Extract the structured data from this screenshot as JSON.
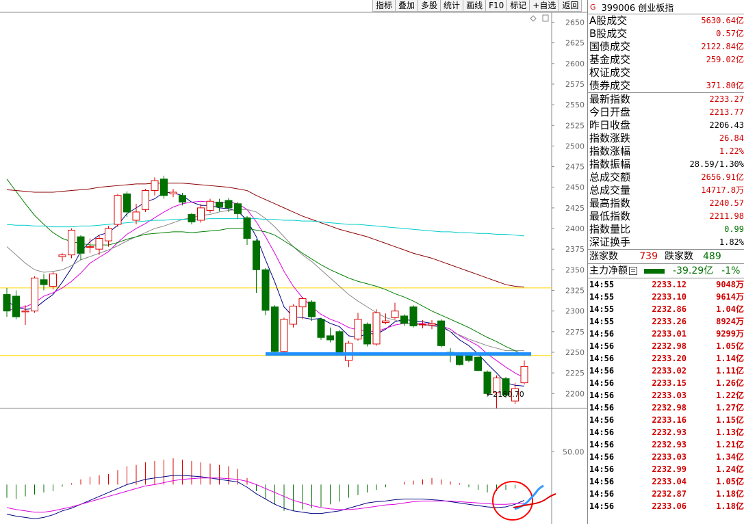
{
  "toolbar": {
    "buttons": [
      "指标",
      "叠加",
      "多股",
      "统计",
      "画线",
      "F10",
      "标记",
      "+自选",
      "返回"
    ]
  },
  "chart_data": [
    {
      "type": "candlestick",
      "y_ticks": [
        2650,
        2625,
        2600,
        2575,
        2550,
        2525,
        2500,
        2475,
        2450,
        2425,
        2400,
        2375,
        2350,
        2325,
        2300,
        2275,
        2250,
        2225,
        2200
      ],
      "ylim": [
        2182,
        2662
      ],
      "low_annotation": "←2180.70",
      "horizontal_lines": [
        {
          "value": 2328,
          "color": "#ffd700"
        },
        {
          "value": 2246,
          "color": "#ffd700"
        }
      ],
      "support_line": {
        "value": 2248,
        "color": "#1e90ff"
      },
      "candles": [
        {
          "o": 2320,
          "c": 2300,
          "h": 2328,
          "l": 2293
        },
        {
          "o": 2318,
          "c": 2293,
          "h": 2325,
          "l": 2290
        },
        {
          "o": 2299,
          "c": 2300,
          "h": 2307,
          "l": 2283
        },
        {
          "o": 2300,
          "c": 2340,
          "h": 2342,
          "l": 2298
        },
        {
          "o": 2338,
          "c": 2332,
          "h": 2345,
          "l": 2325
        },
        {
          "o": 2330,
          "c": 2345,
          "h": 2348,
          "l": 2326
        },
        {
          "o": 2366,
          "c": 2368,
          "h": 2370,
          "l": 2360
        },
        {
          "o": 2368,
          "c": 2398,
          "h": 2400,
          "l": 2364
        },
        {
          "o": 2390,
          "c": 2370,
          "h": 2392,
          "l": 2362
        },
        {
          "o": 2378,
          "c": 2378,
          "h": 2388,
          "l": 2370
        },
        {
          "o": 2375,
          "c": 2388,
          "h": 2392,
          "l": 2368
        },
        {
          "o": 2385,
          "c": 2400,
          "h": 2403,
          "l": 2378
        },
        {
          "o": 2405,
          "c": 2440,
          "h": 2442,
          "l": 2402
        },
        {
          "o": 2442,
          "c": 2420,
          "h": 2445,
          "l": 2414
        },
        {
          "o": 2410,
          "c": 2420,
          "h": 2430,
          "l": 2405
        },
        {
          "o": 2423,
          "c": 2446,
          "h": 2448,
          "l": 2420
        },
        {
          "o": 2446,
          "c": 2458,
          "h": 2462,
          "l": 2440
        },
        {
          "o": 2460,
          "c": 2440,
          "h": 2464,
          "l": 2436
        },
        {
          "o": 2442,
          "c": 2444,
          "h": 2448,
          "l": 2438
        },
        {
          "o": 2440,
          "c": 2432,
          "h": 2443,
          "l": 2428
        },
        {
          "o": 2417,
          "c": 2408,
          "h": 2419,
          "l": 2405
        },
        {
          "o": 2410,
          "c": 2425,
          "h": 2430,
          "l": 2407
        },
        {
          "o": 2422,
          "c": 2433,
          "h": 2436,
          "l": 2419
        },
        {
          "o": 2432,
          "c": 2426,
          "h": 2436,
          "l": 2421
        },
        {
          "o": 2434,
          "c": 2425,
          "h": 2437,
          "l": 2420
        },
        {
          "o": 2430,
          "c": 2418,
          "h": 2432,
          "l": 2412
        },
        {
          "o": 2413,
          "c": 2388,
          "h": 2415,
          "l": 2380
        },
        {
          "o": 2385,
          "c": 2350,
          "h": 2387,
          "l": 2322
        },
        {
          "o": 2350,
          "c": 2301,
          "h": 2352,
          "l": 2295
        },
        {
          "o": 2305,
          "c": 2251,
          "h": 2307,
          "l": 2247
        },
        {
          "o": 2251,
          "c": 2290,
          "h": 2292,
          "l": 2247
        },
        {
          "o": 2284,
          "c": 2306,
          "h": 2308,
          "l": 2280
        },
        {
          "o": 2305,
          "c": 2315,
          "h": 2317,
          "l": 2290
        },
        {
          "o": 2311,
          "c": 2293,
          "h": 2313,
          "l": 2288
        },
        {
          "o": 2290,
          "c": 2268,
          "h": 2292,
          "l": 2265
        },
        {
          "o": 2270,
          "c": 2265,
          "h": 2280,
          "l": 2262
        },
        {
          "o": 2275,
          "c": 2250,
          "h": 2277,
          "l": 2247
        },
        {
          "o": 2240,
          "c": 2261,
          "h": 2264,
          "l": 2232
        },
        {
          "o": 2266,
          "c": 2290,
          "h": 2298,
          "l": 2264
        },
        {
          "o": 2284,
          "c": 2260,
          "h": 2286,
          "l": 2257
        },
        {
          "o": 2260,
          "c": 2298,
          "h": 2302,
          "l": 2258
        },
        {
          "o": 2286,
          "c": 2288,
          "h": 2297,
          "l": 2284
        },
        {
          "o": 2292,
          "c": 2300,
          "h": 2310,
          "l": 2290
        },
        {
          "o": 2294,
          "c": 2285,
          "h": 2296,
          "l": 2282
        },
        {
          "o": 2305,
          "c": 2282,
          "h": 2307,
          "l": 2280
        },
        {
          "o": 2284,
          "c": 2284,
          "h": 2289,
          "l": 2279
        },
        {
          "o": 2283,
          "c": 2285,
          "h": 2289,
          "l": 2278
        },
        {
          "o": 2288,
          "c": 2258,
          "h": 2290,
          "l": 2256
        },
        {
          "o": 2250,
          "c": 2248,
          "h": 2255,
          "l": 2238
        },
        {
          "o": 2247,
          "c": 2235,
          "h": 2250,
          "l": 2234
        },
        {
          "o": 2246,
          "c": 2240,
          "h": 2249,
          "l": 2238
        },
        {
          "o": 2244,
          "c": 2228,
          "h": 2245,
          "l": 2227
        },
        {
          "o": 2226,
          "c": 2200,
          "h": 2228,
          "l": 2196
        },
        {
          "o": 2201,
          "c": 2219,
          "h": 2222,
          "l": 2182
        },
        {
          "o": 2218,
          "c": 2198,
          "h": 2220,
          "l": 2195
        },
        {
          "o": 2191,
          "c": 2206,
          "h": 2213,
          "l": 2187
        },
        {
          "o": 2213,
          "c": 2233,
          "h": 2240,
          "l": 2211
        }
      ],
      "ma_lines": [
        {
          "color": "#000080",
          "values": [
            2312,
            2305,
            2302,
            2303,
            2312,
            2320,
            2335,
            2352,
            2372,
            2384,
            2392,
            2395,
            2404,
            2418,
            2425,
            2432,
            2436,
            2444,
            2443,
            2440,
            2432,
            2428,
            2428,
            2425,
            2424,
            2421,
            2410,
            2390,
            2362,
            2335,
            2305,
            2293,
            2292,
            2290,
            2291,
            2285,
            2281,
            2270,
            2268,
            2273,
            2272,
            2278,
            2287,
            2290,
            2288,
            2287,
            2285,
            2282,
            2275,
            2265,
            2258,
            2248,
            2236,
            2225,
            2213,
            2210,
            2209
          ]
        },
        {
          "color": "#dd00dd",
          "values": [
            2300,
            2304,
            2305,
            2310,
            2318,
            2322,
            2328,
            2336,
            2346,
            2358,
            2365,
            2372,
            2383,
            2393,
            2400,
            2406,
            2413,
            2420,
            2426,
            2430,
            2432,
            2433,
            2432,
            2431,
            2432,
            2430,
            2423,
            2408,
            2390,
            2370,
            2348,
            2330,
            2316,
            2305,
            2296,
            2290,
            2286,
            2280,
            2277,
            2276,
            2275,
            2279,
            2283,
            2285,
            2285,
            2285,
            2283,
            2282,
            2278,
            2270,
            2264,
            2258,
            2248,
            2240,
            2232,
            2225,
            2219
          ]
        },
        {
          "color": "#888888",
          "values": [
            2378,
            2368,
            2358,
            2350,
            2347,
            2348,
            2350,
            2355,
            2362,
            2366,
            2370,
            2374,
            2379,
            2385,
            2390,
            2395,
            2400,
            2403,
            2407,
            2411,
            2413,
            2416,
            2417,
            2420,
            2422,
            2423,
            2423,
            2420,
            2412,
            2402,
            2390,
            2378,
            2368,
            2360,
            2350,
            2340,
            2330,
            2320,
            2312,
            2305,
            2298,
            2292,
            2289,
            2286,
            2284,
            2283,
            2282,
            2280,
            2275,
            2271,
            2266,
            2262,
            2258,
            2255,
            2252,
            2252,
            2252
          ]
        },
        {
          "color": "#008000",
          "values": [
            2460,
            2445,
            2430,
            2416,
            2405,
            2395,
            2388,
            2384,
            2382,
            2380,
            2380,
            2380,
            2383,
            2387,
            2390,
            2393,
            2394,
            2395,
            2396,
            2396,
            2395,
            2396,
            2397,
            2398,
            2400,
            2400,
            2400,
            2398,
            2396,
            2392,
            2385,
            2378,
            2370,
            2363,
            2356,
            2350,
            2345,
            2340,
            2336,
            2333,
            2330,
            2326,
            2321,
            2317,
            2312,
            2306,
            2300,
            2295,
            2290,
            2285,
            2280,
            2274,
            2268,
            2263,
            2257,
            2252,
            2246
          ]
        },
        {
          "color": "#8b0000",
          "values": [
            2447,
            2446,
            2445,
            2444,
            2444,
            2444,
            2445,
            2446,
            2447,
            2448,
            2450,
            2451,
            2452,
            2453,
            2454,
            2454,
            2455,
            2455,
            2455,
            2455,
            2454,
            2453,
            2452,
            2451,
            2450,
            2448,
            2446,
            2440,
            2435,
            2430,
            2425,
            2420,
            2415,
            2411,
            2407,
            2403,
            2399,
            2396,
            2393,
            2390,
            2386,
            2382,
            2378,
            2374,
            2370,
            2367,
            2364,
            2360,
            2356,
            2352,
            2348,
            2344,
            2340,
            2336,
            2332,
            2330,
            2329
          ]
        },
        {
          "color": "#00cccc",
          "values": [
            2405,
            2404,
            2404,
            2403,
            2403,
            2402,
            2402,
            2402,
            2403,
            2403,
            2404,
            2405,
            2406,
            2407,
            2408,
            2409,
            2410,
            2410,
            2411,
            2411,
            2411,
            2411,
            2412,
            2412,
            2412,
            2412,
            2412,
            2412,
            2411,
            2411,
            2410,
            2410,
            2409,
            2409,
            2408,
            2407,
            2406,
            2405,
            2405,
            2404,
            2403,
            2402,
            2401,
            2400,
            2399,
            2398,
            2397,
            2396,
            2396,
            2395,
            2395,
            2394,
            2394,
            2393,
            2393,
            2392,
            2391
          ]
        }
      ]
    },
    {
      "type": "macd",
      "y_tick": "50.00",
      "ylim": [
        -60,
        115
      ],
      "hist": [
        -20,
        -22,
        -18,
        -15,
        -12,
        -10,
        -3,
        2,
        8,
        12,
        14,
        16,
        22,
        28,
        30,
        34,
        36,
        38,
        40,
        38,
        36,
        34,
        32,
        30,
        28,
        24,
        10,
        -10,
        -22,
        -30,
        -40,
        -40,
        -38,
        -36,
        -34,
        -30,
        -26,
        -20,
        -16,
        -12,
        -8,
        -4,
        0,
        4,
        6,
        8,
        10,
        8,
        5,
        2,
        -4,
        -8,
        -12,
        -10,
        -8,
        -6,
        -3
      ],
      "dif": [
        -45,
        -48,
        -50,
        -52,
        -50,
        -46,
        -40,
        -36,
        -30,
        -24,
        -18,
        -12,
        -6,
        0,
        4,
        8,
        10,
        12,
        14,
        14,
        13,
        12,
        10,
        8,
        6,
        4,
        -4,
        -14,
        -22,
        -30,
        -36,
        -40,
        -42,
        -44,
        -44,
        -42,
        -40,
        -36,
        -32,
        -28,
        -26,
        -25,
        -23,
        -22,
        -22,
        -22,
        -23,
        -24,
        -26,
        -28,
        -30,
        -32,
        -34,
        -35,
        -34,
        -30,
        -24
      ],
      "dea": [
        -35,
        -38,
        -40,
        -42,
        -42,
        -40,
        -37,
        -34,
        -30,
        -26,
        -22,
        -18,
        -14,
        -10,
        -6,
        -2,
        0,
        3,
        6,
        8,
        9,
        10,
        10,
        10,
        9,
        8,
        5,
        0,
        -6,
        -12,
        -18,
        -24,
        -28,
        -32,
        -35,
        -37,
        -38,
        -38,
        -37,
        -35,
        -33,
        -31,
        -30,
        -28,
        -26,
        -25,
        -25,
        -25,
        -25,
        -26,
        -27,
        -28,
        -29,
        -30,
        -30,
        -29,
        -28
      ]
    }
  ],
  "sidebar": {
    "code_icon": "G",
    "title": "399006 创业板指",
    "market": [
      {
        "label": "A股成交",
        "value": "5630.64亿",
        "color": "red"
      },
      {
        "label": "B股成交",
        "value": "0.57亿",
        "color": "red"
      },
      {
        "label": "国债成交",
        "value": "2122.84亿",
        "color": "red"
      },
      {
        "label": "基金成交",
        "value": "259.02亿",
        "color": "red"
      },
      {
        "label": "权证成交",
        "value": "",
        "color": "red"
      },
      {
        "label": "债券成交",
        "value": "371.80亿",
        "color": "red"
      }
    ],
    "index": [
      {
        "label": "最新指数",
        "value": "2233.27",
        "color": "red"
      },
      {
        "label": "今日开盘",
        "value": "2213.77",
        "color": "red"
      },
      {
        "label": "昨日收盘",
        "value": "2206.43",
        "color": "blk"
      },
      {
        "label": "指数涨跌",
        "value": "26.84",
        "color": "red"
      },
      {
        "label": "指数涨幅",
        "value": "1.22%",
        "color": "red"
      },
      {
        "label": "指数振幅",
        "value": "28.59/1.30%",
        "color": "blk"
      },
      {
        "label": "总成交额",
        "value": "2656.91亿",
        "color": "red"
      },
      {
        "label": "总成交量",
        "value": "14717.8万",
        "color": "red"
      },
      {
        "label": "最高指数",
        "value": "2240.57",
        "color": "red"
      },
      {
        "label": "最低指数",
        "value": "2211.98",
        "color": "red"
      },
      {
        "label": "指数量比",
        "value": "0.99",
        "color": "grn"
      },
      {
        "label": "深证换手",
        "value": "1.82%",
        "color": "blk"
      }
    ],
    "updown": {
      "up_label": "涨家数",
      "up_value": "739",
      "down_label": "跌家数",
      "down_value": "489"
    },
    "flow": {
      "label": "主力净额",
      "value": "-39.29亿",
      "pct": "-1%"
    },
    "ticks": [
      {
        "time": "14:55",
        "price": "2233.12",
        "vol": "9048万"
      },
      {
        "time": "14:55",
        "price": "2233.10",
        "vol": "9614万"
      },
      {
        "time": "14:55",
        "price": "2232.86",
        "vol": "1.04亿"
      },
      {
        "time": "14:55",
        "price": "2233.26",
        "vol": "8924万"
      },
      {
        "time": "14:56",
        "price": "2233.01",
        "vol": "9299万"
      },
      {
        "time": "14:56",
        "price": "2232.98",
        "vol": "1.05亿"
      },
      {
        "time": "14:56",
        "price": "2233.20",
        "vol": "1.14亿"
      },
      {
        "time": "14:56",
        "price": "2233.02",
        "vol": "1.11亿"
      },
      {
        "time": "14:56",
        "price": "2233.15",
        "vol": "1.26亿"
      },
      {
        "time": "14:56",
        "price": "2233.03",
        "vol": "1.22亿"
      },
      {
        "time": "14:56",
        "price": "2232.98",
        "vol": "1.27亿"
      },
      {
        "time": "14:56",
        "price": "2233.16",
        "vol": "1.15亿"
      },
      {
        "time": "14:56",
        "price": "2232.93",
        "vol": "1.13亿"
      },
      {
        "time": "14:56",
        "price": "2232.93",
        "vol": "1.21亿"
      },
      {
        "time": "14:56",
        "price": "2233.03",
        "vol": "1.34亿"
      },
      {
        "time": "14:56",
        "price": "2232.99",
        "vol": "1.24亿"
      },
      {
        "time": "14:56",
        "price": "2233.04",
        "vol": "1.05亿"
      },
      {
        "time": "14:56",
        "price": "2232.87",
        "vol": "1.18亿"
      },
      {
        "time": "14:56",
        "price": "2233.06",
        "vol": "1.18亿"
      }
    ]
  },
  "colors": {
    "up": "#dd0000",
    "down": "#007000",
    "support": "#1e90ff",
    "circle": "#ff0000",
    "hand_blue": "#3399ff"
  }
}
